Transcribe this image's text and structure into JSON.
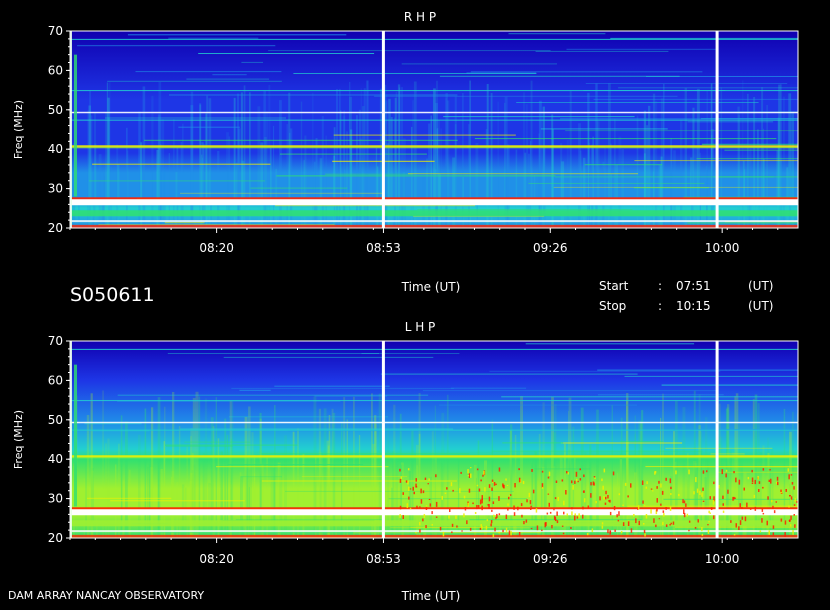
{
  "dataset_id": "S050611",
  "footer_left": "DAM ARRAY   NANCAY OBSERVATORY",
  "time_info": {
    "start_label": "Start",
    "stop_label": "Stop",
    "colon": ":",
    "start": "07:51",
    "stop": "10:15",
    "unit": "(UT)"
  },
  "chart_data": [
    {
      "type": "heatmap",
      "title": "R H P",
      "xlabel": "Time (UT)",
      "ylabel": "Freq (MHz)",
      "x_range": [
        "07:51",
        "10:15"
      ],
      "xticks": [
        "08:20",
        "08:53",
        "09:26",
        "10:00"
      ],
      "ylim": [
        20,
        70
      ],
      "yticks": [
        20,
        30,
        40,
        50,
        60,
        70
      ],
      "gap_lines_time": [
        "08:53",
        "09:59"
      ],
      "intensity_colors": [
        "#1000b0",
        "#1e36e6",
        "#2090e8",
        "#22d0d0",
        "#30e070",
        "#a0f030",
        "#f0f000",
        "#ff2000",
        "#ffffff"
      ],
      "show_xlabel": false
    },
    {
      "type": "heatmap",
      "title": "L H P",
      "xlabel": "Time (UT)",
      "ylabel": "Freq (MHz)",
      "x_range": [
        "07:51",
        "10:15"
      ],
      "xticks": [
        "08:20",
        "08:53",
        "09:26",
        "10:00"
      ],
      "ylim": [
        20,
        70
      ],
      "yticks": [
        20,
        30,
        40,
        50,
        60,
        70
      ],
      "gap_lines_time": [
        "08:53",
        "09:59"
      ],
      "intensity_colors": [
        "#1000b0",
        "#1e36e6",
        "#2090e8",
        "#22d0d0",
        "#30e070",
        "#a0f030",
        "#f0f000",
        "#ff2000",
        "#ffffff"
      ],
      "show_xlabel": true
    }
  ]
}
